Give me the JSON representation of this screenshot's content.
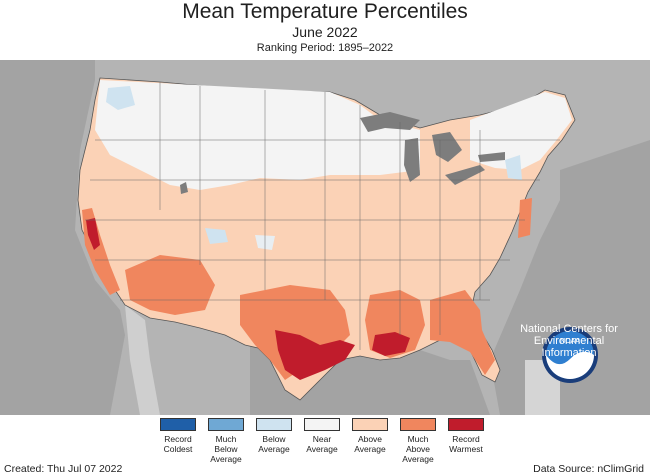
{
  "header": {
    "title": "Mean Temperature Percentiles",
    "subtitle": "June 2022",
    "ranking_period": "Ranking Period: 1895–2022"
  },
  "legend": {
    "items": [
      {
        "label": "Record\nColdest",
        "color": "#1f5fa8"
      },
      {
        "label": "Much\nBelow\nAverage",
        "color": "#6fa8d4"
      },
      {
        "label": "Below\nAverage",
        "color": "#cfe3f0"
      },
      {
        "label": "Near\nAverage",
        "color": "#f4f4f4"
      },
      {
        "label": "Above\nAverage",
        "color": "#fbd2b6"
      },
      {
        "label": "Much\nAbove\nAverage",
        "color": "#f0865e"
      },
      {
        "label": "Record\nWarmest",
        "color": "#c01c2c"
      }
    ]
  },
  "logo": {
    "name": "NOAA",
    "caption": "National Centers for\nEnvironmental\nInformation"
  },
  "footer": {
    "created": "Created: Thu Jul 07 2022",
    "source": "Data Source: nClimGrid"
  },
  "colors": {
    "background_land": "#b9b9b9",
    "ocean": "#9e9e9e",
    "lakes": "#7d7d7d",
    "near_average": "#f4f4f4",
    "above_average": "#fbd2b6",
    "much_above_average": "#f0865e",
    "record_warmest": "#c01c2c",
    "below_average": "#cfe3f0"
  }
}
